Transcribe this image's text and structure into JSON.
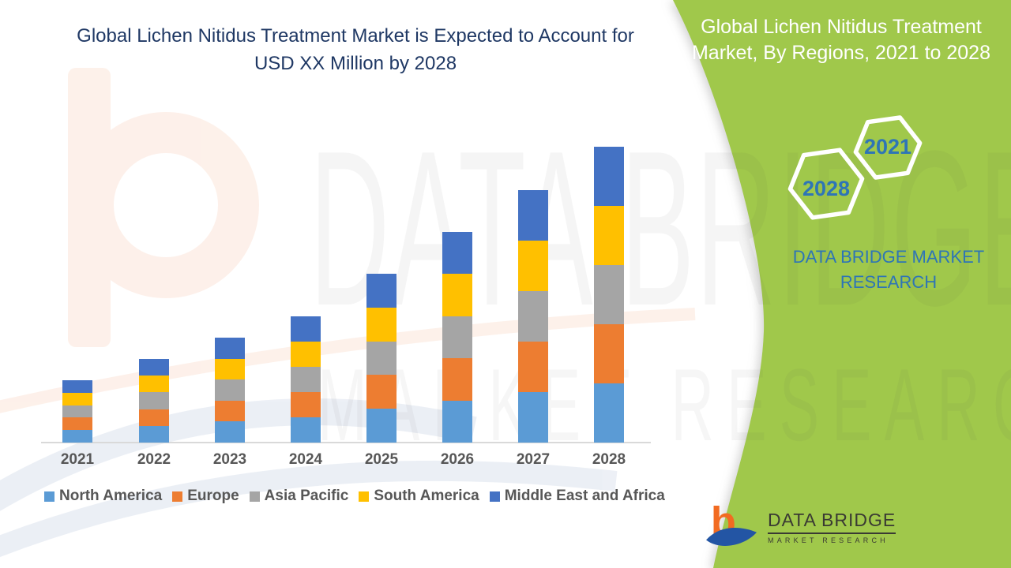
{
  "main_title": {
    "line1": "Global Lichen Nitidus Treatment Market is Expected to Account for",
    "line2": "USD XX Million by 2028"
  },
  "side_panel": {
    "title_line1": "Global Lichen Nitidus Treatment",
    "title_line2": "Market, By Regions, 2021 to 2028",
    "badge_start_year": "2021",
    "badge_end_year": "2028",
    "brand_line1": "DATA BRIDGE MARKET",
    "brand_line2": "RESEARCH",
    "panel_color": "#A0C84B",
    "accent_text_color": "#2E75B6"
  },
  "watermark": {
    "line1": "DATA BRIDGE",
    "line2": "MARKET RESEARCH"
  },
  "logo": {
    "brand": "DATA BRIDGE",
    "sub": "MARKET RESEARCH"
  },
  "chart_data": {
    "type": "bar",
    "stacked": true,
    "title": "Global Lichen Nitidus Treatment Market, By Regions, 2021 to 2028",
    "categories": [
      "2021",
      "2022",
      "2023",
      "2024",
      "2025",
      "2026",
      "2027",
      "2028"
    ],
    "series": [
      {
        "name": "North America",
        "color": "#5B9BD5",
        "values": [
          15.8,
          21.2,
          26.6,
          32.0,
          42.8,
          53.4,
          64.0,
          75.0
        ]
      },
      {
        "name": "Europe",
        "color": "#ED7D31",
        "values": [
          15.8,
          21.2,
          26.6,
          32.0,
          42.8,
          53.4,
          64.0,
          75.0
        ]
      },
      {
        "name": "Asia Pacific",
        "color": "#A5A5A5",
        "values": [
          15.8,
          21.2,
          26.6,
          32.0,
          42.8,
          53.4,
          64.0,
          75.0
        ]
      },
      {
        "name": "South America",
        "color": "#FFC000",
        "values": [
          15.8,
          21.2,
          26.6,
          32.0,
          42.8,
          53.4,
          64.0,
          75.0
        ]
      },
      {
        "name": "Middle East and Africa",
        "color": "#4472C4",
        "values": [
          15.8,
          21.2,
          26.6,
          32.0,
          42.8,
          53.4,
          64.0,
          75.0
        ]
      }
    ],
    "stack_totals": [
      79,
      106,
      133,
      160,
      214,
      267,
      320,
      375
    ],
    "units": "relative height; actual market values not disclosed (USD XX Million)",
    "xlabel": "",
    "ylabel": "",
    "grid": false,
    "y_axis_shown": false,
    "legend_position": "bottom",
    "axis_color": "#D9D9D9",
    "label_color": "#595959"
  }
}
